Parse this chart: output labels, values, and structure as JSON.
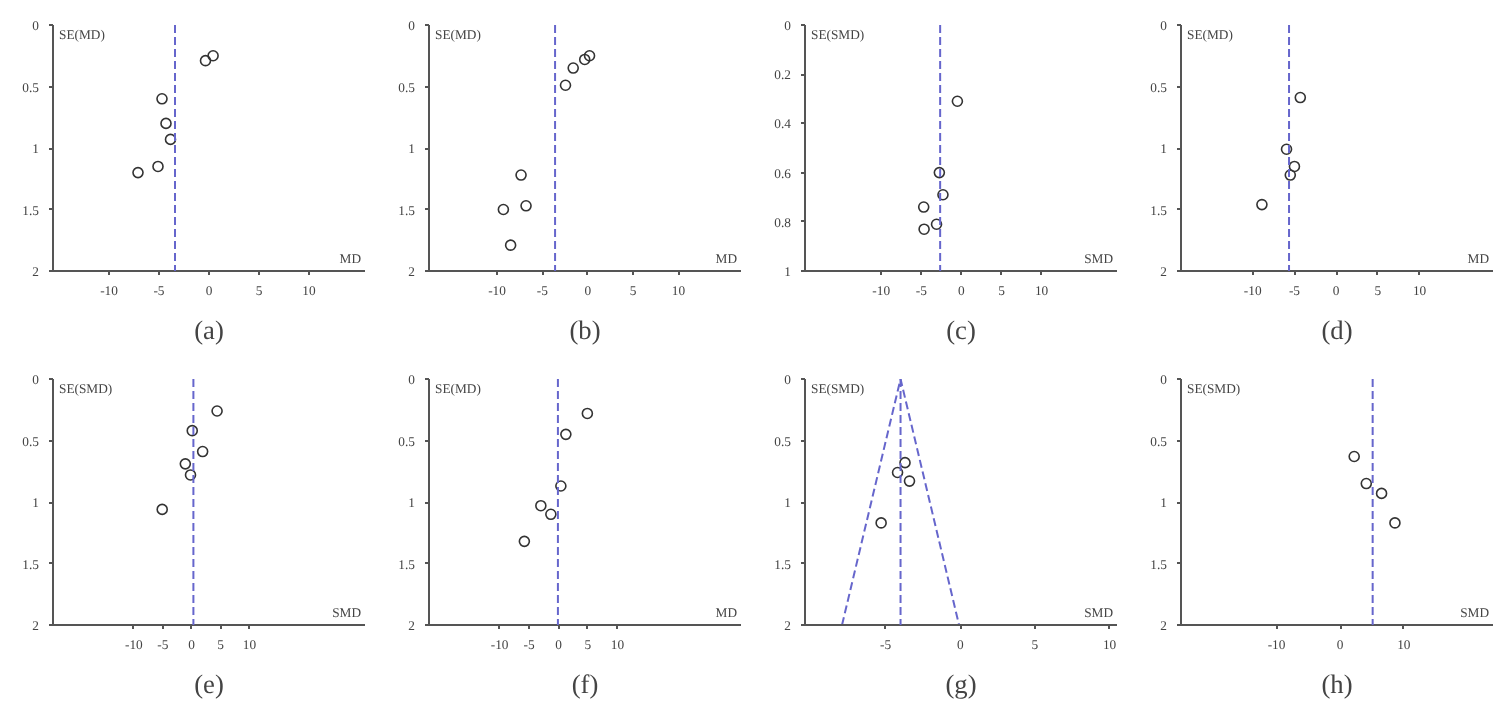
{
  "chart_data": [
    {
      "type": "scatter",
      "ylabel": "SE(MD)",
      "xlabel": "MD",
      "annotations": [
        "(a)"
      ],
      "xlim": [
        -15.6,
        15.6
      ],
      "ylim": [
        2,
        0
      ],
      "xticks": [
        -10,
        -5,
        0,
        5,
        10
      ],
      "yticks": [
        0,
        0.5,
        1,
        1.5,
        2
      ],
      "grid": false,
      "marker": "circle",
      "ref_lines": [
        {
          "axis": "x",
          "value": -3.4,
          "color": "#6666cc",
          "line_style": "dashed"
        }
      ],
      "series": [
        {
          "color": "#333333",
          "x": [
            -0.35,
            0.41,
            -4.7,
            -4.3,
            -3.85,
            -5.1,
            -7.1
          ],
          "values": [
            0.29,
            0.25,
            0.6,
            0.8,
            0.93,
            1.15,
            1.2
          ]
        }
      ]
    },
    {
      "type": "scatter",
      "ylabel": "SE(MD)",
      "xlabel": "MD",
      "annotations": [
        "(b)"
      ],
      "xlim": [
        -17.5,
        16.9
      ],
      "ylim": [
        2,
        0
      ],
      "xticks": [
        -10,
        -5,
        0,
        5,
        10
      ],
      "yticks": [
        0,
        0.5,
        1,
        1.5,
        2
      ],
      "grid": false,
      "marker": "circle",
      "ref_lines": [
        {
          "axis": "x",
          "value": -3.6,
          "color": "#6666cc",
          "line_style": "dashed"
        }
      ],
      "series": [
        {
          "color": "#333333",
          "x": [
            0.2,
            -0.33,
            -1.6,
            -2.45,
            -7.35,
            -9.3,
            -6.8,
            -8.5
          ],
          "values": [
            0.25,
            0.28,
            0.35,
            0.49,
            1.22,
            1.5,
            1.47,
            1.79
          ]
        }
      ]
    },
    {
      "type": "scatter",
      "ylabel": "SE(SMD)",
      "xlabel": "SMD",
      "annotations": [
        "(c)"
      ],
      "xlim": [
        -19.5,
        19.4
      ],
      "ylim": [
        1,
        0
      ],
      "xticks": [
        -10,
        -5,
        0,
        5,
        10
      ],
      "yticks": [
        0,
        0.2,
        0.4,
        0.6,
        0.8,
        1
      ],
      "grid": false,
      "marker": "circle",
      "ref_lines": [
        {
          "axis": "x",
          "value": -2.65,
          "color": "#6666cc",
          "line_style": "dashed"
        }
      ],
      "series": [
        {
          "color": "#333333",
          "x": [
            -0.5,
            -2.75,
            -2.3,
            -4.7,
            -4.65,
            -3.1
          ],
          "values": [
            0.31,
            0.6,
            0.69,
            0.74,
            0.83,
            0.81
          ]
        }
      ]
    },
    {
      "type": "scatter",
      "ylabel": "SE(MD)",
      "xlabel": "MD",
      "annotations": [
        "(d)"
      ],
      "xlim": [
        -18.6,
        18.8
      ],
      "ylim": [
        2,
        0
      ],
      "xticks": [
        -10,
        -5,
        0,
        5,
        10
      ],
      "yticks": [
        0,
        0.5,
        1,
        1.5,
        2
      ],
      "grid": false,
      "marker": "circle",
      "ref_lines": [
        {
          "axis": "x",
          "value": -5.65,
          "color": "#6666cc",
          "line_style": "dashed"
        }
      ],
      "series": [
        {
          "color": "#333333",
          "x": [
            -4.3,
            -5.95,
            -5.0,
            -5.5,
            -8.9
          ],
          "values": [
            0.59,
            1.01,
            1.15,
            1.22,
            1.46
          ]
        }
      ]
    },
    {
      "type": "scatter",
      "ylabel": "SE(SMD)",
      "xlabel": "SMD",
      "annotations": [
        "(e)"
      ],
      "xlim": [
        -24,
        30
      ],
      "ylim": [
        2,
        0
      ],
      "xticks": [
        -10,
        -5,
        0,
        5,
        10
      ],
      "yticks": [
        0,
        0.5,
        1,
        1.5,
        2
      ],
      "grid": false,
      "marker": "circle",
      "ref_lines": [
        {
          "axis": "x",
          "value": 0.3,
          "color": "#6666cc",
          "line_style": "dashed"
        }
      ],
      "series": [
        {
          "color": "#333333",
          "x": [
            4.4,
            0.1,
            1.9,
            -1.1,
            -0.2,
            -5.1
          ],
          "values": [
            0.26,
            0.42,
            0.59,
            0.69,
            0.78,
            1.06
          ]
        }
      ]
    },
    {
      "type": "scatter",
      "ylabel": "SE(MD)",
      "xlabel": "MD",
      "annotations": [
        "(f)"
      ],
      "xlim": [
        -22,
        31
      ],
      "ylim": [
        2,
        0
      ],
      "xticks": [
        -10,
        -5,
        0,
        5,
        10
      ],
      "yticks": [
        0,
        0.5,
        1,
        1.5,
        2
      ],
      "grid": false,
      "marker": "circle",
      "ref_lines": [
        {
          "axis": "x",
          "value": -0.1,
          "color": "#6666cc",
          "line_style": "dashed"
        }
      ],
      "series": [
        {
          "color": "#333333",
          "x": [
            4.9,
            1.25,
            0.4,
            -3.0,
            -1.3,
            -5.8
          ],
          "values": [
            0.28,
            0.45,
            0.87,
            1.03,
            1.1,
            1.32
          ]
        }
      ]
    },
    {
      "type": "scatter",
      "ylabel": "SE(SMD)",
      "xlabel": "SMD",
      "annotations": [
        "(g)"
      ],
      "xlim": [
        -10.4,
        10.5
      ],
      "ylim": [
        2,
        0
      ],
      "xticks": [
        -5,
        0,
        5,
        10
      ],
      "yticks": [
        0,
        0.5,
        1,
        1.5,
        2
      ],
      "grid": false,
      "marker": "circle",
      "ref_lines": [
        {
          "axis": "x",
          "value": -4.0,
          "color": "#6666cc",
          "line_style": "dashed"
        }
      ],
      "series": [
        {
          "color": "#333333",
          "x": [
            -3.7,
            -4.2,
            -3.4,
            -5.3
          ],
          "values": [
            0.68,
            0.76,
            0.83,
            1.17
          ]
        },
        {
          "type": "line",
          "color": "#6666cc",
          "line_style": "dashed",
          "marker": "none",
          "x": [
            -7.92,
            -4.0,
            -0.08
          ],
          "values": [
            2,
            0,
            2
          ]
        }
      ]
    },
    {
      "type": "scatter",
      "ylabel": "SE(SMD)",
      "xlabel": "SMD",
      "annotations": [
        "(h)"
      ],
      "xlim": [
        -25,
        24
      ],
      "ylim": [
        2,
        0
      ],
      "xticks": [
        -10,
        0,
        10
      ],
      "yticks": [
        0,
        0.5,
        1,
        1.5,
        2
      ],
      "grid": false,
      "marker": "circle",
      "ref_lines": [
        {
          "axis": "x",
          "value": 5.1,
          "color": "#6666cc",
          "line_style": "dashed"
        }
      ],
      "series": [
        {
          "color": "#333333",
          "x": [
            2.2,
            4.1,
            6.5,
            8.6
          ],
          "values": [
            0.63,
            0.85,
            0.93,
            1.17
          ]
        }
      ]
    }
  ]
}
